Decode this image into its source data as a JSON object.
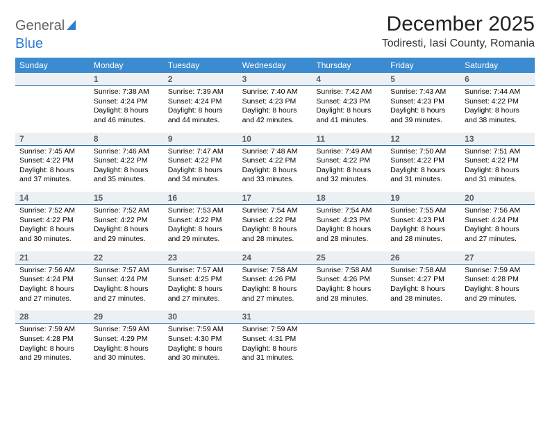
{
  "brand": {
    "part1": "General",
    "part2": "Blue"
  },
  "title": "December 2025",
  "location": "Todiresti, Iasi County, Romania",
  "colors": {
    "header_bg": "#3b8bd0",
    "header_fg": "#ffffff",
    "daynum_bg": "#edf0f2",
    "daynum_border": "#2d6ea8",
    "text": "#000000",
    "brand_grey": "#5f6368",
    "brand_blue": "#2d7dd2"
  },
  "fonts": {
    "title_pt": 30,
    "location_pt": 16,
    "dow_pt": 12,
    "daynum_pt": 12,
    "body_pt": 10.5
  },
  "dow": [
    "Sunday",
    "Monday",
    "Tuesday",
    "Wednesday",
    "Thursday",
    "Friday",
    "Saturday"
  ],
  "weeks": [
    [
      null,
      {
        "n": "1",
        "sr": "7:38 AM",
        "ss": "4:24 PM",
        "dl": "8 hours and 46 minutes."
      },
      {
        "n": "2",
        "sr": "7:39 AM",
        "ss": "4:24 PM",
        "dl": "8 hours and 44 minutes."
      },
      {
        "n": "3",
        "sr": "7:40 AM",
        "ss": "4:23 PM",
        "dl": "8 hours and 42 minutes."
      },
      {
        "n": "4",
        "sr": "7:42 AM",
        "ss": "4:23 PM",
        "dl": "8 hours and 41 minutes."
      },
      {
        "n": "5",
        "sr": "7:43 AM",
        "ss": "4:23 PM",
        "dl": "8 hours and 39 minutes."
      },
      {
        "n": "6",
        "sr": "7:44 AM",
        "ss": "4:22 PM",
        "dl": "8 hours and 38 minutes."
      }
    ],
    [
      {
        "n": "7",
        "sr": "7:45 AM",
        "ss": "4:22 PM",
        "dl": "8 hours and 37 minutes."
      },
      {
        "n": "8",
        "sr": "7:46 AM",
        "ss": "4:22 PM",
        "dl": "8 hours and 35 minutes."
      },
      {
        "n": "9",
        "sr": "7:47 AM",
        "ss": "4:22 PM",
        "dl": "8 hours and 34 minutes."
      },
      {
        "n": "10",
        "sr": "7:48 AM",
        "ss": "4:22 PM",
        "dl": "8 hours and 33 minutes."
      },
      {
        "n": "11",
        "sr": "7:49 AM",
        "ss": "4:22 PM",
        "dl": "8 hours and 32 minutes."
      },
      {
        "n": "12",
        "sr": "7:50 AM",
        "ss": "4:22 PM",
        "dl": "8 hours and 31 minutes."
      },
      {
        "n": "13",
        "sr": "7:51 AM",
        "ss": "4:22 PM",
        "dl": "8 hours and 31 minutes."
      }
    ],
    [
      {
        "n": "14",
        "sr": "7:52 AM",
        "ss": "4:22 PM",
        "dl": "8 hours and 30 minutes."
      },
      {
        "n": "15",
        "sr": "7:52 AM",
        "ss": "4:22 PM",
        "dl": "8 hours and 29 minutes."
      },
      {
        "n": "16",
        "sr": "7:53 AM",
        "ss": "4:22 PM",
        "dl": "8 hours and 29 minutes."
      },
      {
        "n": "17",
        "sr": "7:54 AM",
        "ss": "4:22 PM",
        "dl": "8 hours and 28 minutes."
      },
      {
        "n": "18",
        "sr": "7:54 AM",
        "ss": "4:23 PM",
        "dl": "8 hours and 28 minutes."
      },
      {
        "n": "19",
        "sr": "7:55 AM",
        "ss": "4:23 PM",
        "dl": "8 hours and 28 minutes."
      },
      {
        "n": "20",
        "sr": "7:56 AM",
        "ss": "4:24 PM",
        "dl": "8 hours and 27 minutes."
      }
    ],
    [
      {
        "n": "21",
        "sr": "7:56 AM",
        "ss": "4:24 PM",
        "dl": "8 hours and 27 minutes."
      },
      {
        "n": "22",
        "sr": "7:57 AM",
        "ss": "4:24 PM",
        "dl": "8 hours and 27 minutes."
      },
      {
        "n": "23",
        "sr": "7:57 AM",
        "ss": "4:25 PM",
        "dl": "8 hours and 27 minutes."
      },
      {
        "n": "24",
        "sr": "7:58 AM",
        "ss": "4:26 PM",
        "dl": "8 hours and 27 minutes."
      },
      {
        "n": "25",
        "sr": "7:58 AM",
        "ss": "4:26 PM",
        "dl": "8 hours and 28 minutes."
      },
      {
        "n": "26",
        "sr": "7:58 AM",
        "ss": "4:27 PM",
        "dl": "8 hours and 28 minutes."
      },
      {
        "n": "27",
        "sr": "7:59 AM",
        "ss": "4:28 PM",
        "dl": "8 hours and 29 minutes."
      }
    ],
    [
      {
        "n": "28",
        "sr": "7:59 AM",
        "ss": "4:28 PM",
        "dl": "8 hours and 29 minutes."
      },
      {
        "n": "29",
        "sr": "7:59 AM",
        "ss": "4:29 PM",
        "dl": "8 hours and 30 minutes."
      },
      {
        "n": "30",
        "sr": "7:59 AM",
        "ss": "4:30 PM",
        "dl": "8 hours and 30 minutes."
      },
      {
        "n": "31",
        "sr": "7:59 AM",
        "ss": "4:31 PM",
        "dl": "8 hours and 31 minutes."
      },
      null,
      null,
      null
    ]
  ],
  "labels": {
    "sunrise": "Sunrise:",
    "sunset": "Sunset:",
    "daylight": "Daylight:"
  }
}
